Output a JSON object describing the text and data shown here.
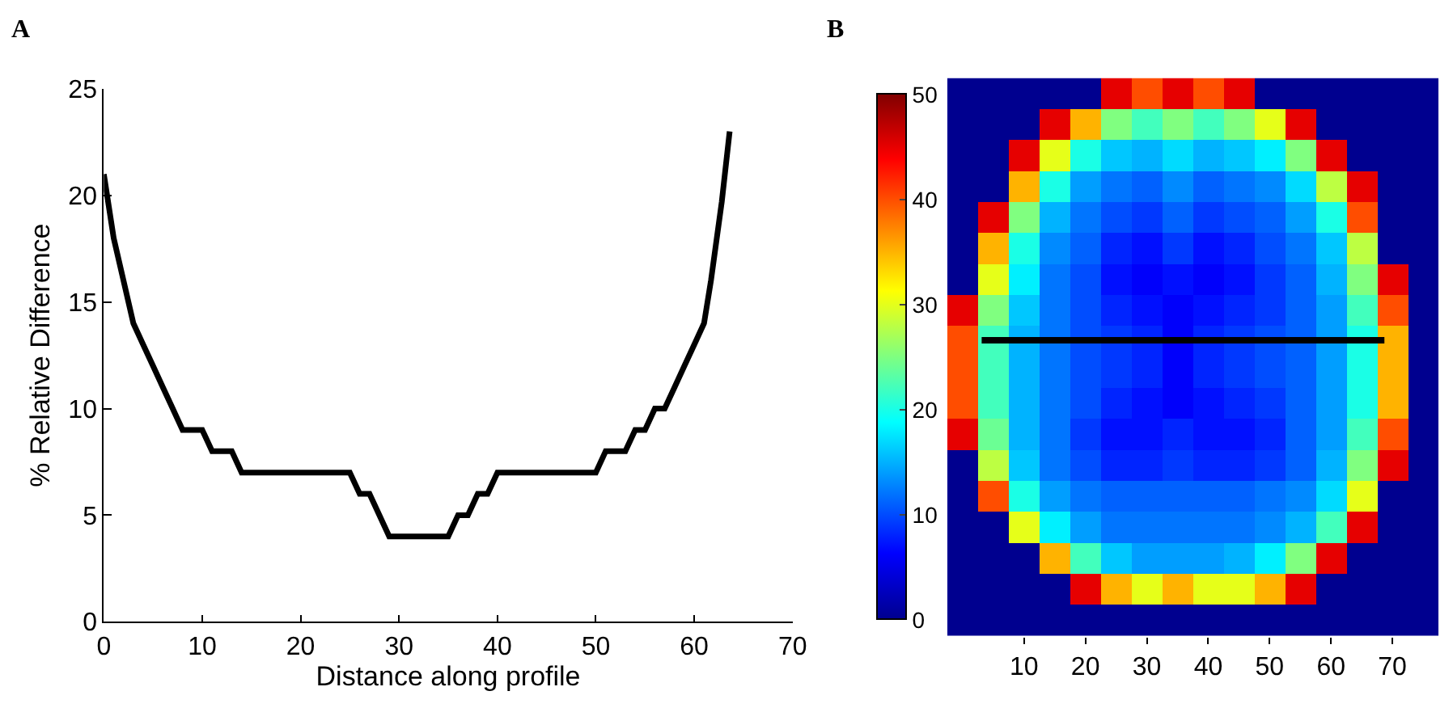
{
  "chart_data": [
    {
      "type": "line",
      "title": "A",
      "xlabel": "Distance along profile",
      "ylabel": "% Relative Difference",
      "xlim": [
        0,
        70
      ],
      "xticks": [
        0,
        10,
        20,
        30,
        40,
        50,
        60,
        70
      ],
      "ylim": [
        0,
        25
      ],
      "yticks": [
        0,
        5,
        10,
        15,
        20,
        25
      ],
      "marker": "none",
      "line_style": "solid",
      "series": [
        {
          "color": "#000000",
          "x": [
            0,
            1,
            2,
            3,
            4,
            5,
            6,
            7,
            8,
            10,
            11,
            13,
            14,
            25,
            26,
            27,
            29,
            35,
            36,
            37,
            38,
            39,
            40,
            50,
            51,
            53,
            54,
            55,
            56,
            57,
            58,
            59,
            60,
            61,
            61.7,
            62.8,
            63.6
          ],
          "values": [
            21,
            18,
            16,
            14,
            13,
            12,
            11,
            10,
            9,
            9,
            8,
            8,
            7,
            7,
            6,
            6,
            4,
            4,
            5,
            5,
            6,
            6,
            7,
            7,
            8,
            8,
            9,
            9,
            10,
            10,
            11,
            12,
            13,
            14,
            16,
            19.7,
            23
          ]
        }
      ]
    },
    {
      "type": "heatmap",
      "title": "B",
      "categories": [
        null,
        null,
        "10",
        null,
        "20",
        null,
        "30",
        null,
        "40",
        null,
        "50",
        null,
        "60",
        null,
        "70",
        null
      ],
      "tick_labels": "x",
      "y_categories": [
        null,
        null,
        null,
        null,
        null,
        null,
        null,
        null,
        null,
        null,
        null,
        null,
        null,
        null,
        null,
        null,
        null,
        null
      ],
      "clim": [
        0,
        50
      ],
      "cticks": [
        0,
        10,
        20,
        30,
        40,
        50
      ],
      "cells": [
        [
          0,
          0,
          0,
          0,
          0,
          45,
          40,
          45,
          40,
          45,
          0,
          0,
          0,
          0,
          0,
          0
        ],
        [
          0,
          0,
          0,
          45,
          35,
          25,
          22,
          25,
          22,
          25,
          30,
          45,
          0,
          0,
          0,
          0
        ],
        [
          0,
          0,
          45,
          30,
          20,
          16,
          15,
          17,
          15,
          16,
          18,
          25,
          45,
          0,
          0,
          0
        ],
        [
          0,
          0,
          35,
          20,
          14,
          12,
          11,
          13,
          11,
          12,
          13,
          17,
          28,
          45,
          0,
          0
        ],
        [
          0,
          45,
          25,
          15,
          12,
          10,
          9,
          11,
          9,
          10,
          11,
          14,
          20,
          40,
          0,
          0
        ],
        [
          0,
          35,
          20,
          13,
          11,
          8,
          7,
          9,
          7,
          8,
          10,
          12,
          16,
          28,
          0,
          0
        ],
        [
          0,
          30,
          18,
          12,
          10,
          7,
          6,
          7,
          6,
          7,
          9,
          11,
          15,
          25,
          45,
          0
        ],
        [
          45,
          25,
          16,
          12,
          10,
          8,
          7,
          6,
          7,
          8,
          9,
          11,
          14,
          22,
          40,
          0
        ],
        [
          40,
          22,
          15,
          12,
          10,
          9,
          8,
          6,
          8,
          9,
          10,
          11,
          14,
          20,
          35,
          0
        ],
        [
          40,
          22,
          15,
          12,
          10,
          9,
          8,
          6,
          8,
          9,
          10,
          11,
          14,
          20,
          35,
          0
        ],
        [
          40,
          22,
          15,
          12,
          10,
          8,
          7,
          6,
          7,
          8,
          9,
          11,
          14,
          20,
          35,
          0
        ],
        [
          45,
          24,
          15,
          12,
          9,
          7,
          7,
          8,
          7,
          7,
          8,
          11,
          14,
          22,
          40,
          0
        ],
        [
          0,
          28,
          16,
          12,
          10,
          8,
          8,
          9,
          8,
          8,
          9,
          11,
          15,
          25,
          45,
          0
        ],
        [
          0,
          40,
          20,
          14,
          12,
          11,
          11,
          11,
          11,
          11,
          12,
          13,
          17,
          30,
          0,
          0
        ],
        [
          0,
          0,
          30,
          18,
          14,
          12,
          12,
          12,
          12,
          12,
          13,
          15,
          22,
          45,
          0,
          0
        ],
        [
          0,
          0,
          0,
          35,
          22,
          16,
          14,
          14,
          14,
          15,
          18,
          25,
          45,
          0,
          0,
          0
        ],
        [
          0,
          0,
          0,
          0,
          45,
          35,
          30,
          35,
          30,
          30,
          35,
          45,
          0,
          0,
          0,
          0
        ],
        [
          0,
          0,
          0,
          0,
          0,
          0,
          0,
          0,
          0,
          0,
          0,
          0,
          0,
          0,
          0,
          0
        ]
      ]
    }
  ]
}
